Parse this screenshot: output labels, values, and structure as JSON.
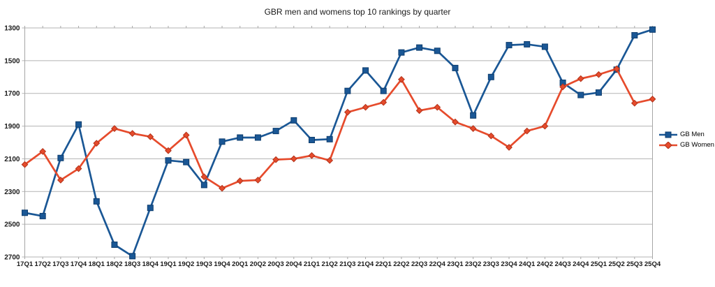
{
  "chart_data": {
    "type": "line",
    "title": "GBR men and womens top 10 rankings by quarter",
    "x": [
      "17Q1",
      "17Q2",
      "17Q3",
      "17Q4",
      "18Q1",
      "18Q2",
      "18Q3",
      "18Q4",
      "19Q1",
      "19Q2",
      "19Q3",
      "19Q4",
      "20Q1",
      "20Q2",
      "20Q3",
      "20Q4",
      "21Q1",
      "21Q2",
      "21Q3",
      "21Q4",
      "22Q1",
      "22Q2",
      "22Q3",
      "22Q4",
      "23Q1",
      "23Q2",
      "23Q3",
      "23Q4",
      "24Q1",
      "24Q2",
      "24Q3",
      "24Q4",
      "25Q1",
      "25Q2",
      "25Q3",
      "25Q4"
    ],
    "series": [
      {
        "name": "GB Men",
        "marker": "square",
        "color": "#1a5795",
        "marker_edge": "#0e3d6e",
        "values": [
          2430,
          2450,
          2095,
          1890,
          2360,
          2625,
          2695,
          2400,
          2110,
          2120,
          2260,
          1995,
          1970,
          1970,
          1930,
          1865,
          1985,
          1980,
          1685,
          1560,
          1685,
          1450,
          1420,
          1440,
          1545,
          1835,
          1600,
          1405,
          1400,
          1415,
          1635,
          1710,
          1695,
          1555,
          1345,
          1310
        ]
      },
      {
        "name": "GB Women",
        "marker": "diamond",
        "color": "#e64b2c",
        "marker_edge": "#b2331a",
        "values": [
          2135,
          2055,
          2230,
          2160,
          2005,
          1915,
          1945,
          1965,
          2050,
          1955,
          2210,
          2280,
          2235,
          2230,
          2105,
          2100,
          2080,
          2110,
          1815,
          1785,
          1755,
          1615,
          1805,
          1785,
          1875,
          1915,
          1960,
          2030,
          1930,
          1900,
          1660,
          1610,
          1585,
          1550,
          1760,
          1735
        ]
      }
    ],
    "y_axis": {
      "min": 1300,
      "max": 2700,
      "step": 200,
      "inverted": true,
      "ticks": [
        1300,
        1500,
        1700,
        1900,
        2100,
        2300,
        2500,
        2700
      ]
    },
    "grid": true,
    "legend_position": "right",
    "grid_color": "#b3b3b3",
    "axis_color": "#a6a6a6",
    "label_color": "#1a1a1a"
  }
}
